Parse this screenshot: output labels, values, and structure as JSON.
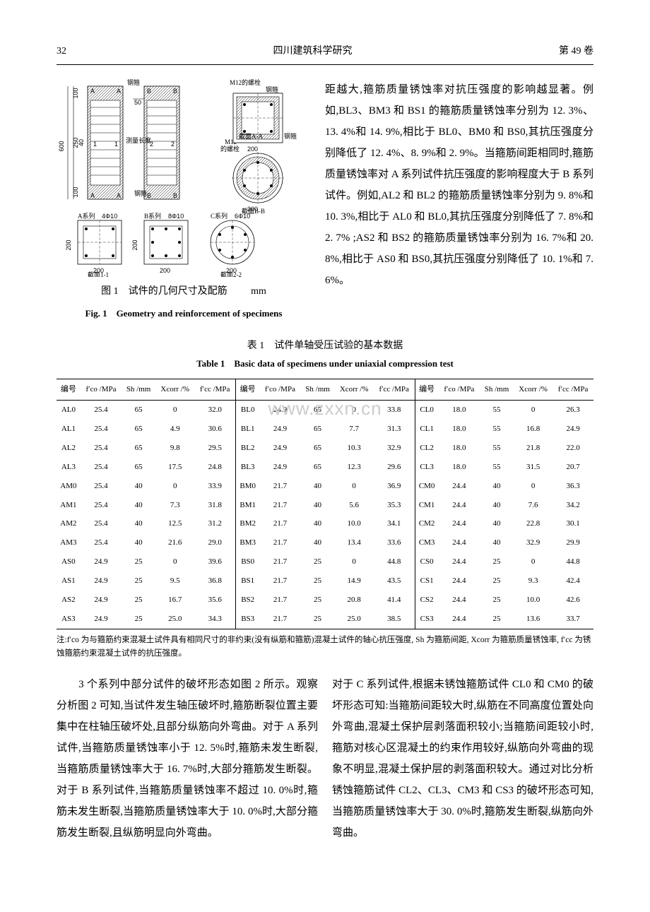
{
  "header": {
    "page_num": "32",
    "journal": "四川建筑科学研究",
    "volume": "第 49 卷"
  },
  "figure1": {
    "caption_cn": "图 1　试件的几何尺寸及配筋",
    "unit": "mm",
    "caption_en": "Fig. 1　Geometry and reinforcement of specimens",
    "labels": {
      "rebar_hoop": "钢箍",
      "m12_bolt": "M12的螺栓",
      "steel_hoop2": "钢箍",
      "meas_len": "测量长度",
      "m12": "M12",
      "bolt2": "的螺栓",
      "steel_hoop3": "钢箍",
      "section_aa": "截面A-A",
      "section_bb": "截面B-B",
      "section_11": "截面1-1",
      "section_22": "截面2-2",
      "series_a": "A系列",
      "series_b": "B系列",
      "series_c": "C系列",
      "bars_a": "4Φ10",
      "bars_b": "8Φ10",
      "bars_c": "6Φ10"
    },
    "dims": {
      "h600": "600",
      "h100a": "100",
      "h100b": "100",
      "h250": "250",
      "h40": "40",
      "w50": "50",
      "w200": "200"
    },
    "colors": {
      "line": "#000000",
      "fill": "#ffffff",
      "hatch": "#000000"
    }
  },
  "para_right": "距越大,箍筋质量锈蚀率对抗压强度的影响越显著。例如,BL3、BM3 和 BS1 的箍筋质量锈蚀率分别为 12. 3%、13. 4%和 14. 9%,相比于 BL0、BM0 和 BS0,其抗压强度分别降低了 12. 4%、8. 9%和 2. 9%。当箍筋间距相同时,箍筋质量锈蚀率对 A 系列试件抗压强度的影响程度大于 B 系列试件。例如,AL2 和 BL2 的箍筋质量锈蚀率分别为 9. 8%和 10. 3%,相比于 AL0 和 BL0,其抗压强度分别降低了 7. 8%和 2. 7% ;AS2 和 BS2 的箍筋质量锈蚀率分别为 16. 7%和 20. 8%,相比于 AS0 和 BS0,其抗压强度分别降低了 10. 1%和 7. 6%。",
  "table1": {
    "caption_cn": "表 1　试件单轴受压试验的基本数据",
    "caption_en": "Table 1　Basic data of specimens under uniaxial compression test",
    "watermark": "www.zxxn.cn",
    "headers": [
      "编号",
      "f′co /MPa",
      "Sh /mm",
      "Xcorr /%",
      "f′cc /MPa"
    ],
    "rows": [
      [
        "AL0",
        "25.4",
        "65",
        "0",
        "32.0",
        "BL0",
        "24.9",
        "65",
        "0",
        "33.8",
        "CL0",
        "18.0",
        "55",
        "0",
        "26.3"
      ],
      [
        "AL1",
        "25.4",
        "65",
        "4.9",
        "30.6",
        "BL1",
        "24.9",
        "65",
        "7.7",
        "31.3",
        "CL1",
        "18.0",
        "55",
        "16.8",
        "24.9"
      ],
      [
        "AL2",
        "25.4",
        "65",
        "9.8",
        "29.5",
        "BL2",
        "24.9",
        "65",
        "10.3",
        "32.9",
        "CL2",
        "18.0",
        "55",
        "21.8",
        "22.0"
      ],
      [
        "AL3",
        "25.4",
        "65",
        "17.5",
        "24.8",
        "BL3",
        "24.9",
        "65",
        "12.3",
        "29.6",
        "CL3",
        "18.0",
        "55",
        "31.5",
        "20.7"
      ],
      [
        "AM0",
        "25.4",
        "40",
        "0",
        "33.9",
        "BM0",
        "21.7",
        "40",
        "0",
        "36.9",
        "CM0",
        "24.4",
        "40",
        "0",
        "36.3"
      ],
      [
        "AM1",
        "25.4",
        "40",
        "7.3",
        "31.8",
        "BM1",
        "21.7",
        "40",
        "5.6",
        "35.3",
        "CM1",
        "24.4",
        "40",
        "7.6",
        "34.2"
      ],
      [
        "AM2",
        "25.4",
        "40",
        "12.5",
        "31.2",
        "BM2",
        "21.7",
        "40",
        "10.0",
        "34.1",
        "CM2",
        "24.4",
        "40",
        "22.8",
        "30.1"
      ],
      [
        "AM3",
        "25.4",
        "40",
        "21.6",
        "29.0",
        "BM3",
        "21.7",
        "40",
        "13.4",
        "33.6",
        "CM3",
        "24.4",
        "40",
        "32.9",
        "29.9"
      ],
      [
        "AS0",
        "24.9",
        "25",
        "0",
        "39.6",
        "BS0",
        "21.7",
        "25",
        "0",
        "44.8",
        "CS0",
        "24.4",
        "25",
        "0",
        "44.8"
      ],
      [
        "AS1",
        "24.9",
        "25",
        "9.5",
        "36.8",
        "BS1",
        "21.7",
        "25",
        "14.9",
        "43.5",
        "CS1",
        "24.4",
        "25",
        "9.3",
        "42.4"
      ],
      [
        "AS2",
        "24.9",
        "25",
        "16.7",
        "35.6",
        "BS2",
        "21.7",
        "25",
        "20.8",
        "41.4",
        "CS2",
        "24.4",
        "25",
        "10.0",
        "42.6"
      ],
      [
        "AS3",
        "24.9",
        "25",
        "25.0",
        "34.3",
        "BS3",
        "21.7",
        "25",
        "25.0",
        "38.5",
        "CS3",
        "24.4",
        "25",
        "13.6",
        "33.7"
      ]
    ],
    "note": "注:f′co 为与箍筋约束混凝土试件具有相同尺寸的非约束(没有纵筋和箍筋)混凝土试件的轴心抗压强度, Sh 为箍筋间距, Xcorr 为箍筋质量锈蚀率, f′cc 为锈蚀箍筋约束混凝土试件的抗压强度。"
  },
  "para_left": "　　3 个系列中部分试件的破坏形态如图 2 所示。观察分析图 2 可知,当试件发生轴压破坏时,箍筋断裂位置主要集中在柱轴压破坏处,且部分纵筋向外弯曲。对于 A 系列试件,当箍筋质量锈蚀率小于 12. 5%时,箍筋未发生断裂,当箍筋质量锈蚀率大于 16. 7%时,大部分箍筋发生断裂。对于 B 系列试件,当箍筋质量锈蚀率不超过 10. 0%时,箍筋未发生断裂,当箍筋质量锈蚀率大于 10. 0%时,大部分箍筋发生断裂,且纵筋明显向外弯曲。",
  "para_right2": "对于 C 系列试件,根据未锈蚀箍筋试件 CL0 和 CM0 的破坏形态可知:当箍筋间距较大时,纵筋在不同高度位置处向外弯曲,混凝土保护层剥落面积较小;当箍筋间距较小时,箍筋对核心区混凝土的约束作用较好,纵筋向外弯曲的现象不明显,混凝土保护层的剥落面积较大。通过对比分析锈蚀箍筋试件 CL2、CL3、CM3 和 CS3 的破坏形态可知,当箍筋质量锈蚀率大于 30. 0%时,箍筋发生断裂,纵筋向外弯曲。"
}
